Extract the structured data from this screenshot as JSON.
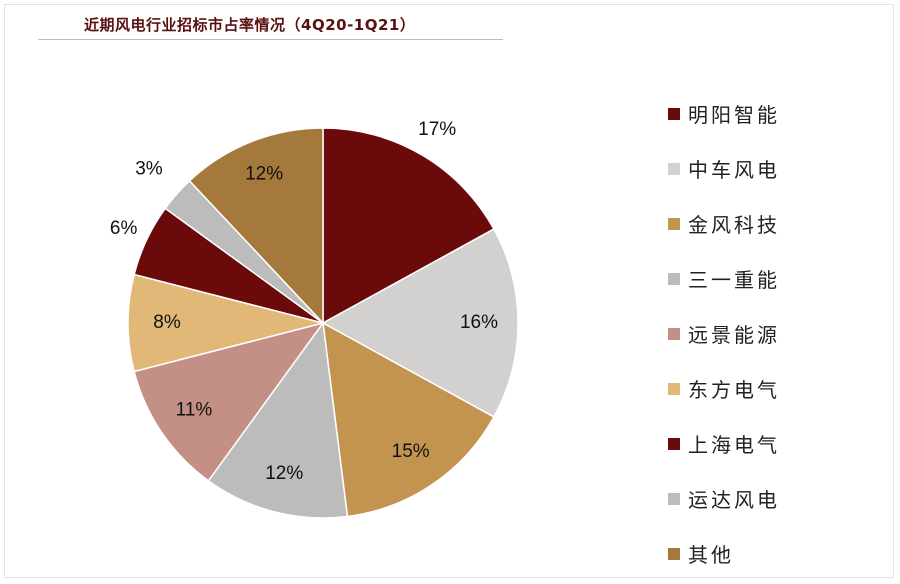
{
  "chart_data": {
    "type": "pie",
    "title": "近期风电行业招标市占率情况（4Q20-1Q21）",
    "start_angle": "top",
    "direction": "clockwise",
    "legend_placement": "right",
    "slices": [
      {
        "name": "明阳智能",
        "value": 17,
        "label": "17%",
        "color": "#6b0a0a"
      },
      {
        "name": "中车风电",
        "value": 16,
        "label": "16%",
        "color": "#d3d1d0"
      },
      {
        "name": "金风科技",
        "value": 15,
        "label": "15%",
        "color": "#c39450"
      },
      {
        "name": "三一重能",
        "value": 12,
        "label": "12%",
        "color": "#bdbcbc"
      },
      {
        "name": "远景能源",
        "value": 11,
        "label": "11%",
        "color": "#c48f85"
      },
      {
        "name": "东方电气",
        "value": 8,
        "label": "8%",
        "color": "#e2b878"
      },
      {
        "name": "上海电气",
        "value": 6,
        "label": "6%",
        "color": "#6b0a0a"
      },
      {
        "name": "运达风电",
        "value": 3,
        "label": "3%",
        "color": "#bdbcbc"
      },
      {
        "name": "其他",
        "value": 12,
        "label": "12%",
        "color": "#a5793b"
      }
    ]
  }
}
